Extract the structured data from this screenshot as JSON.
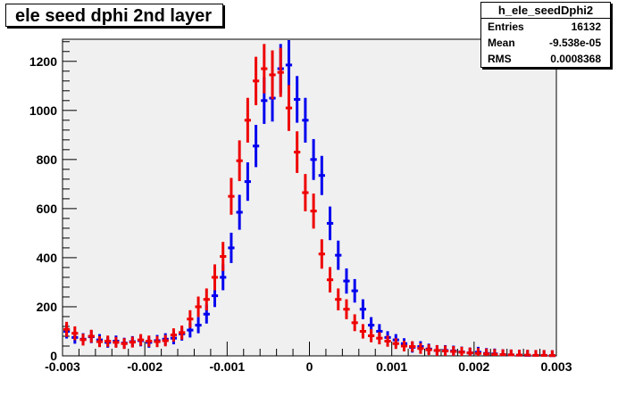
{
  "title": "ele seed dphi 2nd layer",
  "stats": {
    "name": "h_ele_seedDphi2",
    "rows": [
      {
        "key": "Entries",
        "value": "16132"
      },
      {
        "key": "Mean",
        "value": "-9.538e-05"
      },
      {
        "key": "RMS",
        "value": "0.0008368"
      }
    ]
  },
  "colors": {
    "frame_bg": "#f0f0f0",
    "series_blue": "#0000ee",
    "series_red": "#ee0000"
  },
  "chart_data": {
    "type": "scatter",
    "title": "ele seed dphi 2nd layer",
    "xlabel": "",
    "ylabel": "",
    "xlim": [
      -0.003,
      0.003
    ],
    "ylim": [
      0,
      1290
    ],
    "xticks": [
      -0.003,
      -0.002,
      -0.001,
      0,
      0.001,
      0.002,
      0.003
    ],
    "xtick_labels": [
      "-0.003",
      "-0.002",
      "-0.001",
      "0",
      "0.001",
      "0.002",
      "0.003"
    ],
    "yticks": [
      0,
      200,
      400,
      600,
      800,
      1000,
      1200
    ],
    "ytick_labels": [
      "0",
      "200",
      "400",
      "600",
      "800",
      "1000",
      "1200"
    ],
    "grid": false,
    "x": [
      -0.00295,
      -0.00285,
      -0.00275,
      -0.00265,
      -0.00255,
      -0.00245,
      -0.00235,
      -0.00225,
      -0.00215,
      -0.00205,
      -0.00195,
      -0.00185,
      -0.00175,
      -0.00165,
      -0.00155,
      -0.00145,
      -0.00135,
      -0.00125,
      -0.00115,
      -0.00105,
      -0.00095,
      -0.00085,
      -0.00075,
      -0.00065,
      -0.00055,
      -0.00045,
      -0.00035,
      -0.00025,
      -0.00015,
      -5e-05,
      5e-05,
      0.00015,
      0.00025,
      0.00035,
      0.00045,
      0.00055,
      0.00065,
      0.00075,
      0.00085,
      0.00095,
      0.00105,
      0.00115,
      0.00125,
      0.00135,
      0.00145,
      0.00155,
      0.00165,
      0.00175,
      0.00185,
      0.00195,
      0.00205,
      0.00215,
      0.00225,
      0.00235,
      0.00245,
      0.00255,
      0.00265,
      0.00275,
      0.00285,
      0.00295
    ],
    "series": [
      {
        "color": "#0000ee",
        "values": [
          100,
          75,
          68,
          78,
          65,
          55,
          60,
          52,
          58,
          62,
          55,
          62,
          68,
          72,
          90,
          105,
          125,
          170,
          245,
          320,
          440,
          585,
          710,
          855,
          1040,
          1050,
          1170,
          1185,
          1045,
          960,
          800,
          735,
          540,
          410,
          305,
          265,
          190,
          125,
          100,
          75,
          65,
          50,
          35,
          38,
          28,
          22,
          22,
          20,
          16,
          12,
          15,
          10,
          8,
          5,
          4,
          3,
          2,
          2,
          2,
          1
        ]
      },
      {
        "color": "#ee0000",
        "values": [
          108,
          92,
          66,
          80,
          58,
          60,
          55,
          50,
          56,
          65,
          60,
          58,
          62,
          85,
          95,
          150,
          200,
          230,
          320,
          405,
          650,
          795,
          960,
          1120,
          1170,
          1145,
          1155,
          1010,
          830,
          665,
          590,
          415,
          310,
          230,
          190,
          135,
          100,
          82,
          72,
          60,
          50,
          40,
          38,
          30,
          25,
          22,
          20,
          18,
          15,
          12,
          10,
          8,
          6,
          5,
          4,
          3,
          3,
          2,
          2,
          1
        ]
      }
    ]
  }
}
